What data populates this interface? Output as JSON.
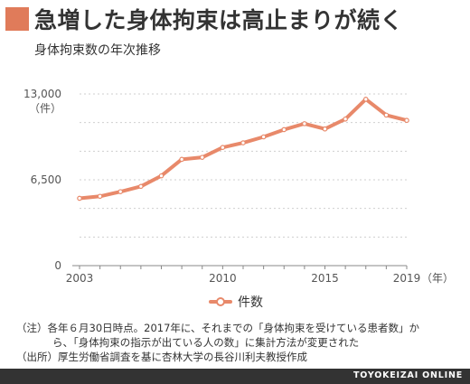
{
  "header": {
    "title": "急増した身体拘束は高止まりが続く",
    "subtitle": "身体拘束数の年次推移",
    "accent_color": "#e07b5a"
  },
  "chart_data": {
    "type": "line",
    "title": "急増した身体拘束は高止まりが続く",
    "subtitle": "身体拘束数の年次推移",
    "x": [
      2003,
      2004,
      2005,
      2006,
      2007,
      2008,
      2009,
      2010,
      2011,
      2012,
      2013,
      2014,
      2015,
      2016,
      2017,
      2018,
      2019
    ],
    "x_tick_labels": [
      "2003",
      "2010",
      "2015",
      "2019"
    ],
    "x_unit": "（年）",
    "y_tick_labels": [
      "0",
      "6,500",
      "13,000"
    ],
    "y_unit": "（件）",
    "ylim": [
      0,
      13000
    ],
    "grid": true,
    "series": [
      {
        "name": "件数",
        "color": "#e8896a",
        "values": [
          5100,
          5250,
          5600,
          6000,
          6800,
          8050,
          8200,
          8950,
          9300,
          9750,
          10300,
          10750,
          10350,
          11100,
          12600,
          11400,
          11000
        ]
      }
    ]
  },
  "legend": {
    "label": "件数",
    "position": "bottom"
  },
  "notes": [
    "（注）各年６月30日時点。2017年に、それまでの「身体拘束を受けている患者数」か",
    "ら、「身体拘束の指示が出ている人の数」に集計方法が変更された",
    "（出所）厚生労働省調査を基に杏林大学の長谷川利夫教授作成"
  ],
  "footer": {
    "brand": "TOYOKEIZAI ONLINE",
    "background": "#333333"
  }
}
